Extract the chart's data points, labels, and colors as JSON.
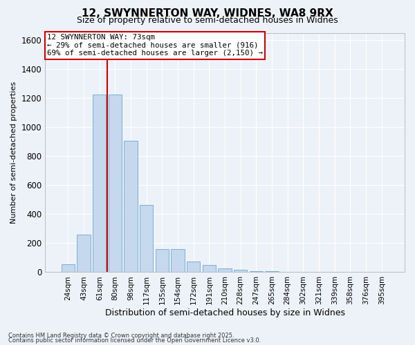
{
  "title": "12, SWYNNERTON WAY, WIDNES, WA8 9RX",
  "subtitle": "Size of property relative to semi-detached houses in Widnes",
  "xlabel": "Distribution of semi-detached houses by size in Widnes",
  "ylabel": "Number of semi-detached properties",
  "categories": [
    "24sqm",
    "43sqm",
    "61sqm",
    "80sqm",
    "98sqm",
    "117sqm",
    "135sqm",
    "154sqm",
    "172sqm",
    "191sqm",
    "210sqm",
    "228sqm",
    "247sqm",
    "265sqm",
    "284sqm",
    "302sqm",
    "321sqm",
    "339sqm",
    "358sqm",
    "376sqm",
    "395sqm"
  ],
  "values": [
    55,
    260,
    1225,
    1225,
    905,
    465,
    158,
    158,
    72,
    48,
    28,
    18,
    8,
    5,
    3,
    2,
    1,
    1,
    0,
    0,
    0
  ],
  "bar_color": "#c5d8ed",
  "bar_edge_color": "#7aafd4",
  "line_color": "#cc0000",
  "annotation_text": "12 SWYNNERTON WAY: 73sqm\n← 29% of semi-detached houses are smaller (916)\n69% of semi-detached houses are larger (2,150) →",
  "annotation_box_color": "#ffffff",
  "annotation_box_edge": "#cc0000",
  "ylim_max": 1650,
  "background_color": "#edf2f8",
  "grid_color": "#ffffff",
  "footer1": "Contains HM Land Registry data © Crown copyright and database right 2025.",
  "footer2": "Contains public sector information licensed under the Open Government Licence v3.0."
}
